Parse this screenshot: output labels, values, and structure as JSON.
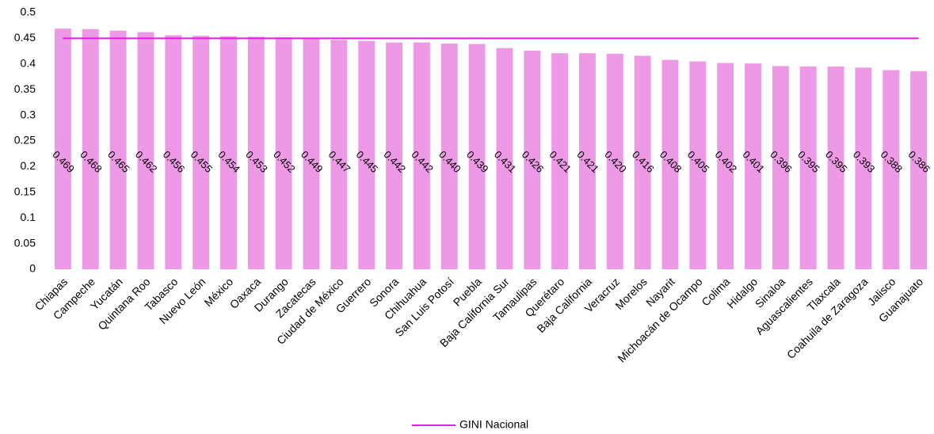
{
  "chart_data": {
    "type": "bar",
    "categories": [
      "Chiapas",
      "Campeche",
      "Yucatán",
      "Quintana Roo",
      "Tabasco",
      "Nuevo León",
      "México",
      "Oaxaca",
      "Durango",
      "Zacatecas",
      "Ciudad de México",
      "Guerrero",
      "Sonora",
      "Chihuahua",
      "San Luis Potosí",
      "Puebla",
      "Baja California Sur",
      "Tamaulipas",
      "Querétaro",
      "Baja California",
      "Veracruz",
      "Morelos",
      "Nayarit",
      "Michoacán de Ocampo",
      "Colima",
      "Hidalgo",
      "Sinaloa",
      "Aguascalientes",
      "Tlaxcala",
      "Coahuila de Zaragoza",
      "Jalisco",
      "Guanajuato"
    ],
    "values": [
      0.469,
      0.468,
      0.465,
      0.462,
      0.456,
      0.455,
      0.454,
      0.453,
      0.452,
      0.449,
      0.447,
      0.445,
      0.442,
      0.442,
      0.44,
      0.439,
      0.431,
      0.426,
      0.421,
      0.421,
      0.42,
      0.416,
      0.408,
      0.405,
      0.402,
      0.401,
      0.396,
      0.395,
      0.395,
      0.393,
      0.388,
      0.386
    ],
    "value_labels": [
      "0.469",
      "0.468",
      "0.465",
      "0.462",
      "0.456",
      "0.455",
      "0.454",
      "0.453",
      "0.452",
      "0.449",
      "0.447",
      "0.445",
      "0.442",
      "0.442",
      "0.440",
      "0.439",
      "0.431",
      "0.426",
      "0.421",
      "0.421",
      "0.420",
      "0.416",
      "0.408",
      "0.405",
      "0.402",
      "0.401",
      "0.396",
      "0.395",
      "0.395",
      "0.393",
      "0.388",
      "0.386"
    ],
    "color": "#ee99e6",
    "reference_line": {
      "name": "GINI Nacional",
      "value": 0.45,
      "color": "#e020e0"
    },
    "ylim": [
      0,
      0.5
    ],
    "yticks": [
      0,
      0.05,
      0.1,
      0.15,
      0.2,
      0.25,
      0.3,
      0.35,
      0.4,
      0.45,
      0.5
    ],
    "grid": false
  }
}
